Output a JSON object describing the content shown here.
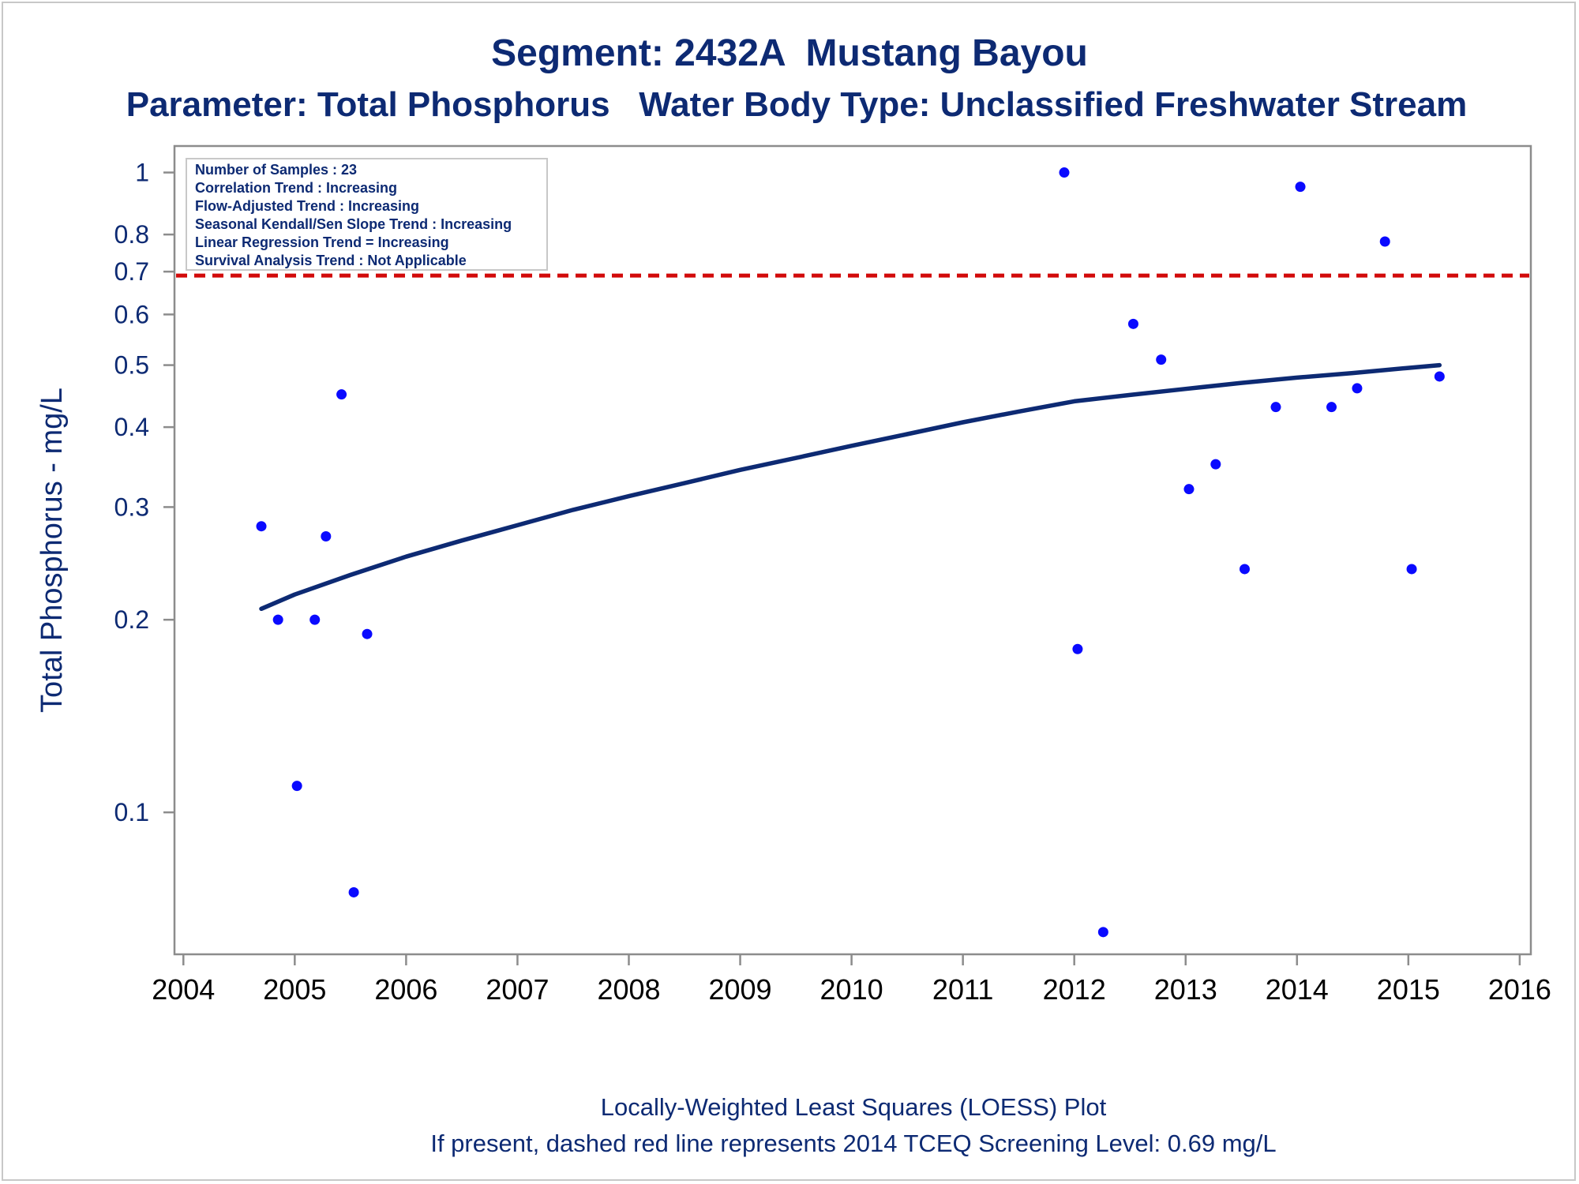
{
  "chart_data": {
    "type": "scatter",
    "title": "Segment: 2432A  Mustang Bayou",
    "subtitle": "Parameter: Total Phosphorus   Water Body Type: Unclassified Freshwater Stream",
    "xlabel": "",
    "ylabel": "Total Phosphorus - mg/L",
    "y_scale": "log",
    "xlim": [
      2003.92,
      2016.1
    ],
    "ylim": [
      0.06,
      1.1
    ],
    "x_ticks": [
      "2004",
      "2005",
      "2006",
      "2007",
      "2008",
      "2009",
      "2010",
      "2011",
      "2012",
      "2013",
      "2014",
      "2015",
      "2016"
    ],
    "y_ticks": [
      "0.1",
      "0.2",
      "0.3",
      "0.4",
      "0.5",
      "0.6",
      "0.7",
      "0.8",
      "1"
    ],
    "grid": false,
    "stats_box": [
      "Number of Samples : 23",
      "Correlation Trend : Increasing",
      "Flow-Adjusted Trend : Increasing",
      "Seasonal Kendall/Sen Slope Trend : Increasing",
      "Linear Regression Trend = Increasing",
      "Survival Analysis Trend : Not Applicable"
    ],
    "screening_level": {
      "value": 0.69,
      "color": "#d20a0a",
      "style": "dashed"
    },
    "points_color": "#0a0aff",
    "series": [
      {
        "x": [
          2004.7,
          2004.85,
          2005.02,
          2005.18,
          2005.28,
          2005.42,
          2005.53,
          2005.65,
          2011.91,
          2012.03,
          2012.26,
          2012.53,
          2012.78,
          2013.03,
          2013.27,
          2013.53,
          2013.81,
          2014.03,
          2014.31,
          2014.54,
          2014.79,
          2015.03,
          2015.28
        ],
        "values": [
          0.28,
          0.2,
          0.11,
          0.2,
          0.27,
          0.45,
          0.075,
          0.19,
          1.0,
          0.18,
          0.065,
          0.58,
          0.51,
          0.32,
          0.35,
          0.24,
          0.43,
          0.95,
          0.43,
          0.46,
          0.78,
          0.24,
          0.48
        ]
      }
    ],
    "loess_curve": {
      "color": "#0d2a73",
      "x": [
        2004.7,
        2005.0,
        2005.5,
        2006.0,
        2006.5,
        2007.0,
        2007.5,
        2008.0,
        2008.5,
        2009.0,
        2009.5,
        2010.0,
        2010.5,
        2011.0,
        2011.5,
        2012.0,
        2012.5,
        2013.0,
        2013.5,
        2014.0,
        2014.5,
        2015.0,
        2015.28
      ],
      "values": [
        0.208,
        0.219,
        0.235,
        0.251,
        0.266,
        0.281,
        0.297,
        0.312,
        0.327,
        0.343,
        0.358,
        0.374,
        0.39,
        0.407,
        0.423,
        0.439,
        0.449,
        0.459,
        0.469,
        0.478,
        0.486,
        0.495,
        0.5
      ]
    },
    "footnotes": [
      "Locally-Weighted Least Squares (LOESS) Plot",
      "If present, dashed red line represents 2014 TCEQ Screening Level: 0.69 mg/L"
    ]
  }
}
